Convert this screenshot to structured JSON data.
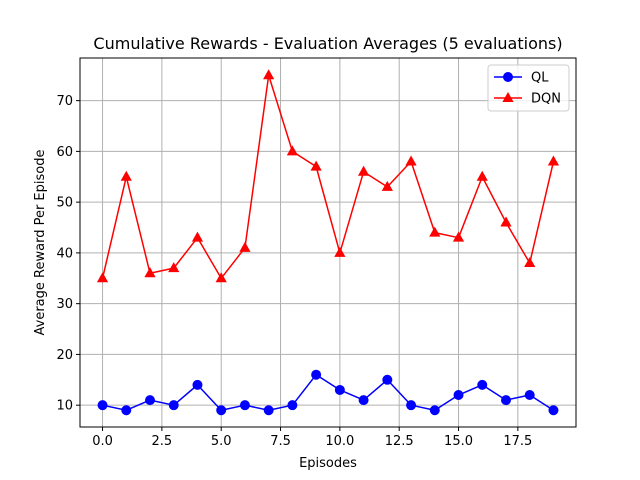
{
  "chart_data": {
    "type": "line",
    "title": "Cumulative Rewards - Evaluation Averages (5 evaluations)",
    "xlabel": "Episodes",
    "ylabel": "Average Reward Per Episode",
    "x": [
      0,
      1,
      2,
      3,
      4,
      5,
      6,
      7,
      8,
      9,
      10,
      11,
      12,
      13,
      14,
      15,
      16,
      17,
      18,
      19
    ],
    "xlim": [
      -0.95,
      19.95
    ],
    "ylim": [
      5.7,
      78.4
    ],
    "xticks": [
      0.0,
      2.5,
      5.0,
      7.5,
      10.0,
      12.5,
      15.0,
      17.5
    ],
    "xtick_labels": [
      "0.0",
      "2.5",
      "5.0",
      "7.5",
      "10.0",
      "12.5",
      "15.0",
      "17.5"
    ],
    "yticks": [
      10,
      20,
      30,
      40,
      50,
      60,
      70
    ],
    "ytick_labels": [
      "10",
      "20",
      "30",
      "40",
      "50",
      "60",
      "70"
    ],
    "grid": true,
    "legend_position": "top-right",
    "series": [
      {
        "name": "QL",
        "color": "#0000ff",
        "marker": "circle",
        "values": [
          10,
          9,
          11,
          10,
          14,
          9,
          10,
          9,
          10,
          16,
          13,
          11,
          15,
          10,
          9,
          12,
          14,
          11,
          12,
          9
        ]
      },
      {
        "name": "DQN",
        "color": "#ff0000",
        "marker": "triangle",
        "values": [
          35,
          55,
          36,
          37,
          43,
          35,
          41,
          75,
          60,
          57,
          40,
          56,
          53,
          58,
          44,
          43,
          55,
          46,
          38,
          58
        ]
      }
    ]
  }
}
